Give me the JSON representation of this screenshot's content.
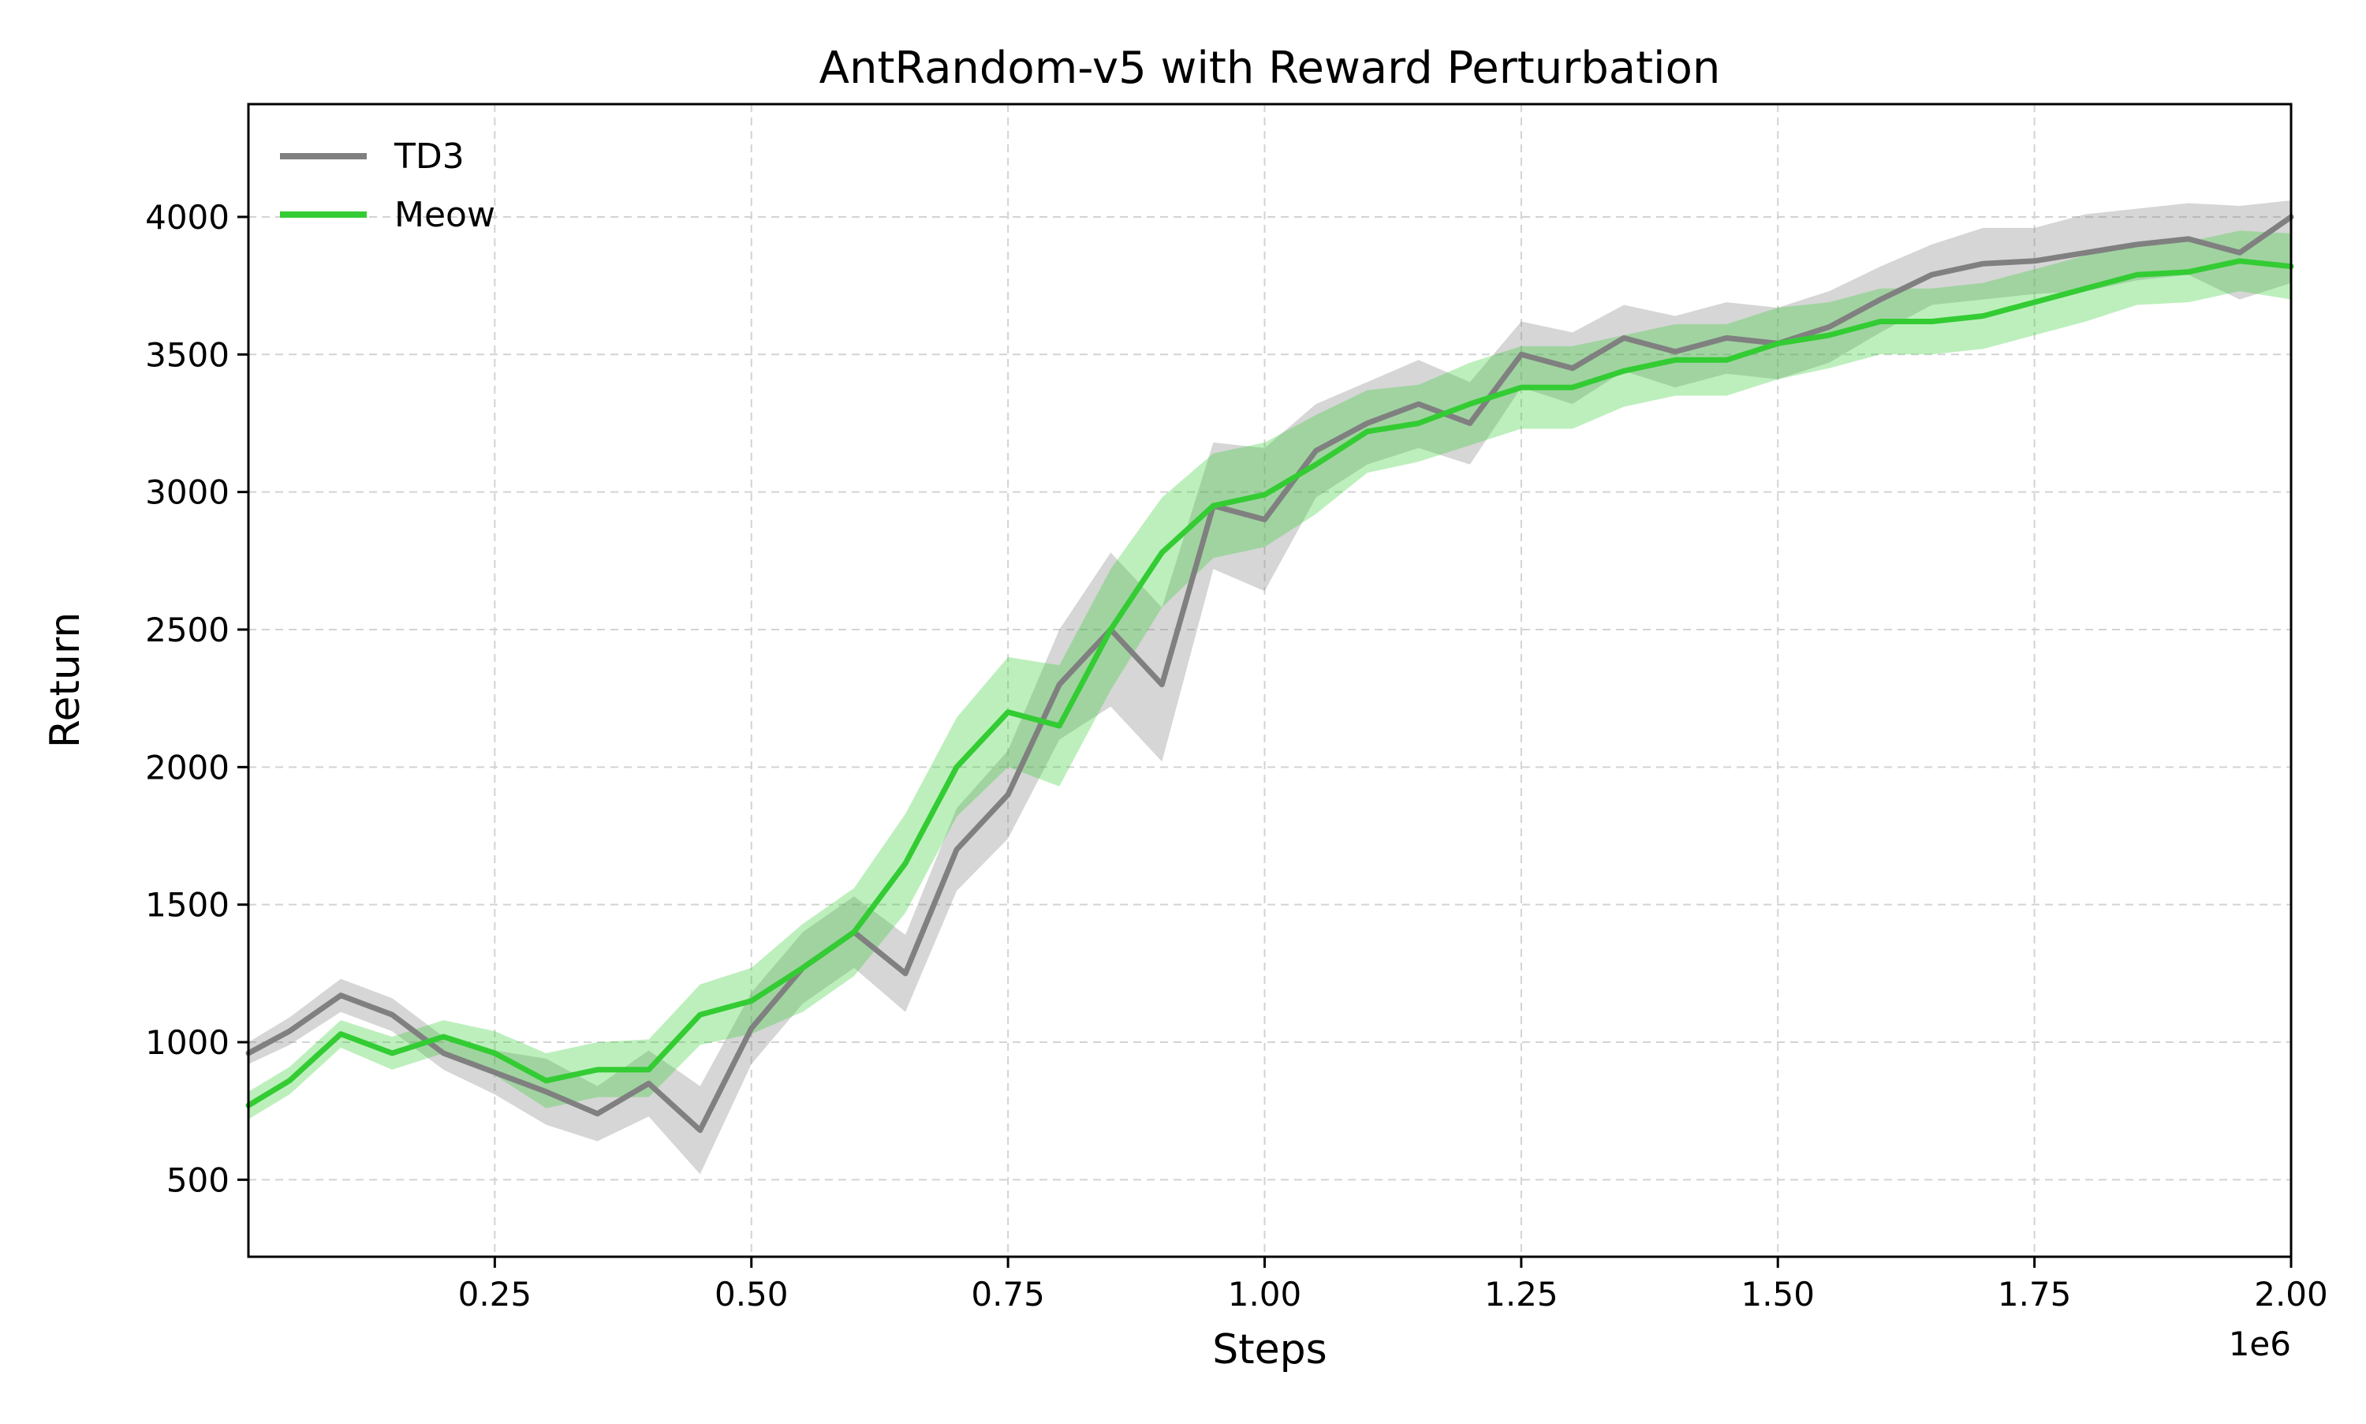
{
  "chart_data": {
    "type": "line",
    "title": "AntRandom-v5 with Reward Perturbation",
    "xlabel": "Steps",
    "ylabel": "Return",
    "x_offset_label": "1e6",
    "xlim": [
      0.01,
      2.0
    ],
    "ylim": [
      220,
      4410
    ],
    "xticks": [
      0.25,
      0.5,
      0.75,
      1.0,
      1.25,
      1.5,
      1.75,
      2.0
    ],
    "xtick_labels": [
      "0.25",
      "0.50",
      "0.75",
      "1.00",
      "1.25",
      "1.50",
      "1.75",
      "2.00"
    ],
    "yticks": [
      500,
      1000,
      1500,
      2000,
      2500,
      3000,
      3500,
      4000
    ],
    "ytick_labels": [
      "500",
      "1000",
      "1500",
      "2000",
      "2500",
      "3000",
      "3500",
      "4000"
    ],
    "grid": true,
    "legend_position": "top-left",
    "series": [
      {
        "name": "TD3",
        "color": "#808080",
        "x": [
          0.01,
          0.05,
          0.1,
          0.15,
          0.2,
          0.25,
          0.3,
          0.35,
          0.4,
          0.45,
          0.5,
          0.55,
          0.6,
          0.65,
          0.7,
          0.75,
          0.8,
          0.85,
          0.9,
          0.95,
          1.0,
          1.05,
          1.1,
          1.15,
          1.2,
          1.25,
          1.3,
          1.35,
          1.4,
          1.45,
          1.5,
          1.55,
          1.6,
          1.65,
          1.7,
          1.75,
          1.8,
          1.85,
          1.9,
          1.95,
          2.0
        ],
        "y": [
          960,
          1040,
          1170,
          1100,
          960,
          890,
          820,
          740,
          850,
          680,
          1050,
          1270,
          1400,
          1250,
          1700,
          1900,
          2300,
          2500,
          2300,
          2950,
          2900,
          3150,
          3250,
          3320,
          3250,
          3500,
          3450,
          3560,
          3510,
          3560,
          3540,
          3600,
          3700,
          3790,
          3830,
          3840,
          3870,
          3900,
          3920,
          3870,
          4000
        ],
        "band_low": [
          920,
          990,
          1110,
          1040,
          900,
          810,
          700,
          640,
          730,
          520,
          920,
          1140,
          1270,
          1110,
          1550,
          1740,
          2100,
          2220,
          2020,
          2720,
          2640,
          2980,
          3100,
          3160,
          3100,
          3380,
          3320,
          3440,
          3380,
          3430,
          3410,
          3470,
          3580,
          3680,
          3700,
          3720,
          3730,
          3770,
          3790,
          3700,
          3760
        ],
        "band_high": [
          1000,
          1090,
          1230,
          1160,
          1020,
          970,
          940,
          840,
          970,
          840,
          1180,
          1400,
          1530,
          1390,
          1850,
          2060,
          2500,
          2780,
          2580,
          3180,
          3160,
          3320,
          3400,
          3480,
          3400,
          3620,
          3580,
          3680,
          3640,
          3690,
          3670,
          3730,
          3820,
          3900,
          3960,
          3960,
          4010,
          4030,
          4050,
          4040,
          4060
        ]
      },
      {
        "name": "Meow",
        "color": "#33cc33",
        "x": [
          0.01,
          0.05,
          0.1,
          0.15,
          0.2,
          0.25,
          0.3,
          0.35,
          0.4,
          0.45,
          0.5,
          0.55,
          0.6,
          0.65,
          0.7,
          0.75,
          0.8,
          0.85,
          0.9,
          0.95,
          1.0,
          1.05,
          1.1,
          1.15,
          1.2,
          1.25,
          1.3,
          1.35,
          1.4,
          1.45,
          1.5,
          1.55,
          1.6,
          1.65,
          1.7,
          1.75,
          1.8,
          1.85,
          1.9,
          1.95,
          2.0
        ],
        "y": [
          770,
          860,
          1030,
          960,
          1020,
          960,
          860,
          900,
          900,
          1100,
          1150,
          1270,
          1400,
          1650,
          2000,
          2200,
          2150,
          2500,
          2780,
          2950,
          2990,
          3100,
          3220,
          3250,
          3320,
          3380,
          3380,
          3440,
          3480,
          3480,
          3540,
          3570,
          3620,
          3620,
          3640,
          3690,
          3740,
          3790,
          3800,
          3840,
          3820
        ],
        "band_low": [
          720,
          810,
          980,
          900,
          960,
          880,
          760,
          800,
          800,
          990,
          1030,
          1110,
          1240,
          1470,
          1820,
          2000,
          1930,
          2280,
          2580,
          2760,
          2800,
          2920,
          3070,
          3110,
          3170,
          3230,
          3230,
          3310,
          3350,
          3350,
          3410,
          3450,
          3500,
          3500,
          3520,
          3570,
          3620,
          3680,
          3690,
          3730,
          3700
        ],
        "band_high": [
          820,
          910,
          1080,
          1020,
          1080,
          1040,
          960,
          1000,
          1010,
          1210,
          1270,
          1430,
          1560,
          1830,
          2180,
          2400,
          2370,
          2720,
          2980,
          3140,
          3180,
          3280,
          3370,
          3390,
          3470,
          3530,
          3530,
          3570,
          3610,
          3610,
          3670,
          3690,
          3740,
          3740,
          3760,
          3810,
          3860,
          3900,
          3910,
          3950,
          3940
        ]
      }
    ]
  }
}
